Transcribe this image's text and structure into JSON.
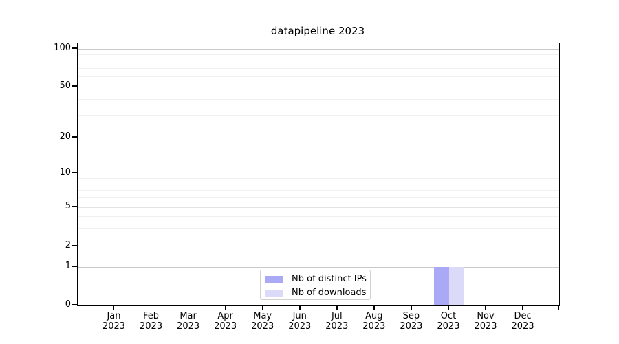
{
  "title": "datapipeline 2023",
  "chart_data": {
    "type": "bar",
    "title": "datapipeline 2023",
    "categories": [
      "Jan 2023",
      "Feb 2023",
      "Mar 2023",
      "Apr 2023",
      "May 2023",
      "Jun 2023",
      "Jul 2023",
      "Aug 2023",
      "Sep 2023",
      "Oct 2023",
      "Nov 2023",
      "Dec 2023"
    ],
    "xtick_months": [
      "Jan",
      "Feb",
      "Mar",
      "Apr",
      "May",
      "Jun",
      "Jul",
      "Aug",
      "Sep",
      "Oct",
      "Nov",
      "Dec"
    ],
    "xtick_year": "2023",
    "series": [
      {
        "name": "Nb of distinct IPs",
        "color": "#a9a9f6",
        "values": [
          0,
          0,
          0,
          0,
          0,
          0,
          0,
          0,
          0,
          1,
          0,
          0
        ]
      },
      {
        "name": "Nb of downloads",
        "color": "#dbdbf9",
        "values": [
          0,
          0,
          0,
          0,
          0,
          0,
          0,
          0,
          0,
          1,
          0,
          0
        ]
      }
    ],
    "yscale": "symlog",
    "yticks": [
      0,
      1,
      2,
      5,
      10,
      20,
      50,
      100
    ],
    "yminor_gridlines": [
      3,
      4,
      6,
      7,
      8,
      9,
      30,
      40,
      60,
      70,
      80,
      90
    ],
    "ylim": [
      0,
      110
    ],
    "xlabel": "",
    "ylabel": "",
    "grid": "horizontal major and minor",
    "legend_position": "lower center"
  },
  "legend": {
    "items": [
      {
        "label": "Nb of distinct IPs",
        "color": "#a9a9f6"
      },
      {
        "label": "Nb of downloads",
        "color": "#dbdbf9"
      }
    ]
  },
  "style_colors": {
    "grid_major": "#c9c9c9",
    "grid_mid": "#e3e3e3",
    "grid_minor": "#f0f0f0",
    "axis": "#000000",
    "legend_border": "#d0d0d0"
  }
}
